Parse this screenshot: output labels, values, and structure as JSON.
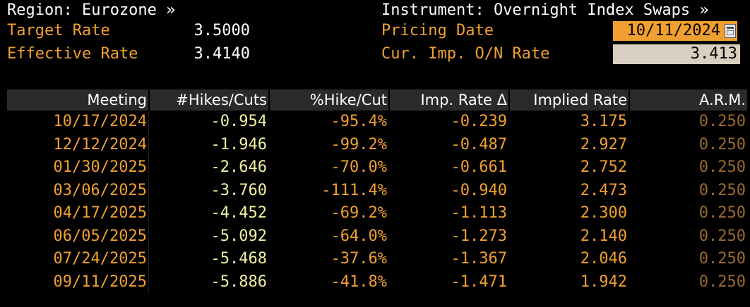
{
  "header": {
    "region_label": "Region: Eurozone »",
    "target_rate_label": "Target Rate",
    "target_rate_value": "3.5000",
    "effective_rate_label": "Effective Rate",
    "effective_rate_value": "3.4140",
    "instrument_label": "Instrument: Overnight Index Swaps »",
    "pricing_date_label": "Pricing Date",
    "pricing_date_value": "10/11/2024",
    "cur_imp_label": "Cur. Imp. O/N Rate",
    "cur_imp_value": "3.413"
  },
  "table": {
    "columns": [
      "Meeting",
      "#Hikes/Cuts",
      "%Hike/Cut",
      "Imp. Rate Δ",
      "Implied Rate",
      "A.R.M."
    ],
    "rows": [
      [
        "10/17/2024",
        "-0.954",
        "-95.4%",
        "-0.239",
        "3.175",
        "0.250"
      ],
      [
        "12/12/2024",
        "-1.946",
        "-99.2%",
        "-0.487",
        "2.927",
        "0.250"
      ],
      [
        "01/30/2025",
        "-2.646",
        "-70.0%",
        "-0.661",
        "2.752",
        "0.250"
      ],
      [
        "03/06/2025",
        "-3.760",
        "-111.4%",
        "-0.940",
        "2.473",
        "0.250"
      ],
      [
        "04/17/2025",
        "-4.452",
        "-69.2%",
        "-1.113",
        "2.300",
        "0.250"
      ],
      [
        "06/05/2025",
        "-5.092",
        "-64.0%",
        "-1.273",
        "2.140",
        "0.250"
      ],
      [
        "07/24/2025",
        "-5.468",
        "-37.6%",
        "-1.367",
        "2.046",
        "0.250"
      ],
      [
        "09/11/2025",
        "-5.886",
        "-41.8%",
        "-1.471",
        "1.942",
        "0.250"
      ]
    ]
  },
  "colors": {
    "background": "#000000",
    "amber": "#f0a030",
    "header_bg": "#2a2a2a",
    "pale_yellow": "#f0f0a0",
    "dim_amber": "#9a6a30"
  }
}
